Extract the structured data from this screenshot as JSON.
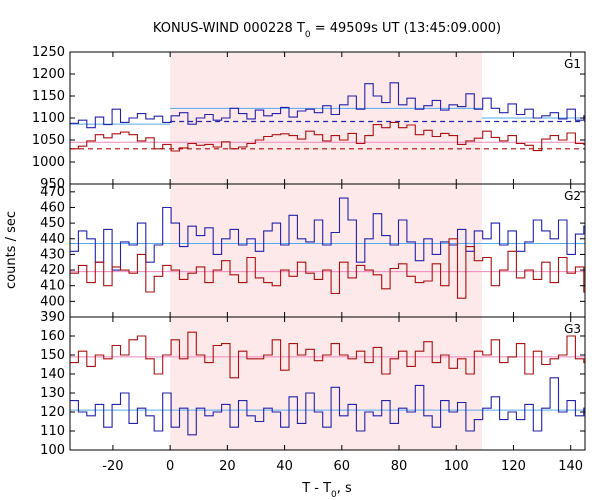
{
  "chart_data": {
    "type": "line",
    "title": "KONUS-WIND 000228 T",
    "title_sub": "0",
    "title_rest": " = 49509s UT (13:45:09.000)",
    "xlabel": "T - T",
    "xlabel_sub": "0",
    "xlabel_rest": ", s",
    "ylabel": "counts / sec",
    "xlim": [
      -35,
      145
    ],
    "xticks": [
      -20,
      0,
      20,
      40,
      60,
      80,
      100,
      120,
      140
    ],
    "grid": false,
    "highlight_interval": [
      0,
      109
    ],
    "colors": {
      "blue": "#2222aa",
      "red": "#aa1111",
      "highlight": "#fde8ea",
      "level_blue": "#55aaee",
      "level_red": "#ee88bb",
      "background_dash_blue": "#2222aa",
      "background_dash_red": "#aa1111"
    },
    "bin_width": 2.944,
    "bin_start": -35,
    "panels": [
      {
        "name": "G1",
        "ylim": [
          950,
          1250
        ],
        "yticks": [
          950,
          1000,
          1050,
          1100,
          1150,
          1200,
          1250
        ],
        "series": [
          {
            "color": "blue",
            "values": [
              1088,
              1095,
              1078,
              1102,
              1085,
              1120,
              1090,
              1100,
              1110,
              1098,
              1104,
              1090,
              1105,
              1112,
              1086,
              1100,
              1108,
              1095,
              1100,
              1122,
              1110,
              1098,
              1118,
              1105,
              1110,
              1124,
              1102,
              1116,
              1120,
              1112,
              1128,
              1108,
              1130,
              1150,
              1120,
              1178,
              1150,
              1135,
              1180,
              1130,
              1145,
              1120,
              1128,
              1140,
              1118,
              1130,
              1126,
              1155,
              1120,
              1145,
              1122,
              1112,
              1132,
              1108,
              1120,
              1100,
              1105,
              1112,
              1098,
              1120,
              1095,
              1105,
              1086,
              1110,
              1095,
              1100,
              1112,
              1104,
              1096,
              1108,
              1118,
              1090,
              1116
            ]
          },
          {
            "color": "red",
            "values": [
              1030,
              1036,
              1048,
              1062,
              1055,
              1064,
              1068,
              1062,
              1048,
              1055,
              1030,
              1040,
              1025,
              1032,
              1042,
              1038,
              1040,
              1034,
              1046,
              1030,
              1034,
              1042,
              1050,
              1058,
              1062,
              1064,
              1060,
              1052,
              1070,
              1062,
              1048,
              1060,
              1050,
              1065,
              1042,
              1060,
              1085,
              1078,
              1090,
              1078,
              1084,
              1062,
              1072,
              1058,
              1065,
              1060,
              1040,
              1048,
              1054,
              1070,
              1056,
              1048,
              1060,
              1042,
              1038,
              1026,
              1052,
              1060,
              1050,
              1066,
              1042,
              1040,
              1030,
              1055,
              1048,
              1036,
              1052,
              1040,
              1058,
              1034,
              1046,
              1030,
              1044
            ]
          }
        ],
        "levels": [
          {
            "color": "level_blue",
            "value": 1086,
            "from": -35,
            "to": 0
          },
          {
            "color": "level_blue",
            "value": 1122,
            "from": 0,
            "to": 109
          },
          {
            "color": "level_blue",
            "value": 1100,
            "from": 109,
            "to": 145
          },
          {
            "color": "level_red",
            "value": 1045,
            "from": -35,
            "to": 145
          }
        ],
        "dashed": [
          {
            "color": "background_dash_blue",
            "value": 1092,
            "from": 0,
            "to": 145
          },
          {
            "color": "background_dash_red",
            "value": 1030,
            "from": -35,
            "to": 145
          }
        ]
      },
      {
        "name": "G2",
        "ylim": [
          390,
          475
        ],
        "yticks": [
          390,
          400,
          410,
          420,
          430,
          440,
          450,
          460,
          470
        ],
        "series": [
          {
            "color": "blue",
            "values": [
              432,
              445,
              440,
              425,
              446,
              420,
              438,
              436,
              450,
              425,
              436,
              460,
              450,
              435,
              448,
              442,
              447,
              430,
              440,
              446,
              436,
              440,
              432,
              445,
              450,
              436,
              455,
              440,
              438,
              452,
              436,
              444,
              466,
              452,
              425,
              440,
              456,
              442,
              436,
              452,
              438,
              426,
              440,
              430,
              438,
              436,
              446,
              432,
              445,
              440,
              450,
              436,
              445,
              432,
              438,
              452,
              445,
              440,
              452,
              430,
              443,
              448,
              440,
              436,
              444,
              438,
              432,
              428,
              420,
              436,
              430,
              442,
              436
            ]
          },
          {
            "color": "red",
            "values": [
              418,
              423,
              412,
              425,
              410,
              422,
              420,
              418,
              430,
              406,
              416,
              423,
              420,
              414,
              418,
              422,
              412,
              420,
              426,
              417,
              412,
              428,
              415,
              412,
              410,
              420,
              416,
              425,
              418,
              414,
              420,
              405,
              425,
              415,
              423,
              420,
              417,
              408,
              421,
              424,
              416,
              412,
              413,
              424,
              410,
              440,
              402,
              435,
              426,
              428,
              410,
              420,
              432,
              415,
              420,
              414,
              425,
              412,
              428,
              418,
              422,
              406,
              436,
              440,
              416,
              410,
              426,
              406,
              418,
              425,
              414,
              408,
              420
            ]
          }
        ],
        "levels": [
          {
            "color": "level_blue",
            "value": 437,
            "from": -35,
            "to": 145
          },
          {
            "color": "level_red",
            "value": 419,
            "from": -35,
            "to": 145
          }
        ],
        "dashed": []
      },
      {
        "name": "G3",
        "ylim": [
          100,
          170
        ],
        "yticks": [
          100,
          110,
          120,
          130,
          140,
          150,
          160
        ],
        "series": [
          {
            "color": "red",
            "values": [
              146,
              152,
              144,
              150,
              148,
              155,
              150,
              158,
              160,
              148,
              140,
              150,
              158,
              148,
              162,
              150,
              146,
              155,
              156,
              138,
              152,
              148,
              148,
              150,
              158,
              142,
              156,
              150,
              153,
              147,
              150,
              156,
              150,
              148,
              152,
              146,
              154,
              140,
              148,
              152,
              144,
              152,
              157,
              146,
              150,
              143,
              148,
              140,
              152,
              150,
              158,
              146,
              149,
              156,
              140,
              152,
              145,
              148,
              150,
              160,
              148,
              146,
              152,
              144,
              150,
              148,
              151,
              145,
              152,
              147,
              155,
              150,
              143
            ]
          },
          {
            "color": "blue",
            "values": [
              126,
              120,
              118,
              124,
              112,
              124,
              130,
              114,
              122,
              118,
              110,
              130,
              112,
              122,
              108,
              122,
              118,
              120,
              124,
              112,
              126,
              118,
              115,
              122,
              120,
              112,
              128,
              114,
              130,
              120,
              112,
              133,
              118,
              124,
              110,
              120,
              118,
              126,
              114,
              122,
              120,
              134,
              118,
              112,
              126,
              120,
              125,
              110,
              116,
              122,
              128,
              116,
              120,
              116,
              124,
              110,
              122,
              138,
              120,
              126,
              118,
              122,
              124,
              112,
              120,
              118,
              126,
              112,
              124,
              114,
              122,
              116,
              120
            ]
          }
        ],
        "levels": [
          {
            "color": "level_red",
            "value": 149,
            "from": -35,
            "to": 145
          },
          {
            "color": "level_blue",
            "value": 121,
            "from": -35,
            "to": 145
          }
        ],
        "dashed": []
      }
    ]
  }
}
